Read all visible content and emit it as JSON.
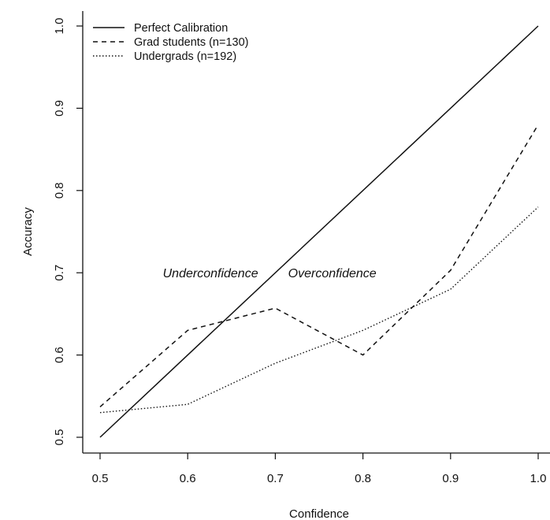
{
  "chart_data": {
    "type": "line",
    "title": "",
    "xlabel": "Confidence",
    "ylabel": "Accuracy",
    "xlim": [
      0.5,
      1.0
    ],
    "ylim": [
      0.5,
      1.0
    ],
    "x_ticks": [
      "0.5",
      "0.6",
      "0.7",
      "0.8",
      "0.9",
      "1.0"
    ],
    "y_ticks": [
      "0.5",
      "0.6",
      "0.7",
      "0.8",
      "0.9",
      "1.0"
    ],
    "grid": false,
    "legend_position": "top-left",
    "series": [
      {
        "name": "Perfect Calibration",
        "line_style": "solid",
        "x": [
          0.5,
          1.0
        ],
        "y": [
          0.5,
          1.0
        ]
      },
      {
        "name": "Grad students (n=130)",
        "line_style": "dashed",
        "x": [
          0.5,
          0.6,
          0.7,
          0.8,
          0.9,
          1.0
        ],
        "y": [
          0.537,
          0.63,
          0.657,
          0.6,
          0.703,
          0.88
        ]
      },
      {
        "name": "Undergrads (n=192)",
        "line_style": "dotted",
        "x": [
          0.5,
          0.6,
          0.7,
          0.8,
          0.9,
          1.0
        ],
        "y": [
          0.53,
          0.54,
          0.59,
          0.63,
          0.68,
          0.78
        ]
      }
    ],
    "annotations": [
      {
        "text": "Underconfidence",
        "x": 0.626,
        "y": 0.7
      },
      {
        "text": "Overconfidence",
        "x": 0.765,
        "y": 0.7
      }
    ],
    "colors": {
      "line": "#111111",
      "background": "#ffffff"
    }
  }
}
